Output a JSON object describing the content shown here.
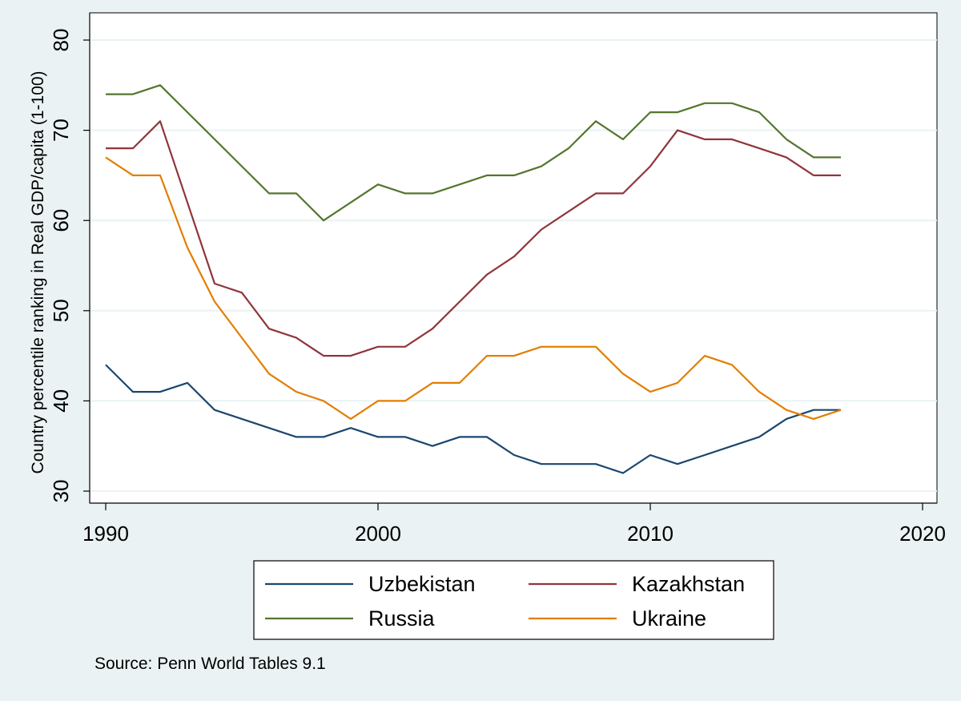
{
  "chart_data": {
    "type": "line",
    "title": "",
    "xlabel": "",
    "ylabel": "Country percentile ranking in Real GDP/capita (1-100)",
    "note": "Source: Penn World Tables 9.1",
    "xlim": [
      1990,
      2020
    ],
    "ylim": [
      30,
      80
    ],
    "xticks": [
      1990,
      2000,
      2010,
      2020
    ],
    "yticks": [
      30,
      40,
      50,
      60,
      70,
      80
    ],
    "grid": true,
    "legend": "bottom",
    "x": [
      1990,
      1991,
      1992,
      1993,
      1994,
      1995,
      1996,
      1997,
      1998,
      1999,
      2000,
      2001,
      2002,
      2003,
      2004,
      2005,
      2006,
      2007,
      2008,
      2009,
      2010,
      2011,
      2012,
      2013,
      2014,
      2015,
      2016,
      2017
    ],
    "series": [
      {
        "name": "Uzbekistan",
        "color": "#1a476f",
        "values": [
          44,
          41,
          41,
          42,
          39,
          38,
          37,
          36,
          36,
          37,
          36,
          36,
          35,
          36,
          36,
          34,
          33,
          33,
          33,
          32,
          34,
          33,
          34,
          35,
          36,
          38,
          39,
          39
        ]
      },
      {
        "name": "Kazakhstan",
        "color": "#90353b",
        "values": [
          68,
          68,
          71,
          62,
          53,
          52,
          48,
          47,
          45,
          45,
          46,
          46,
          48,
          51,
          54,
          56,
          59,
          61,
          63,
          63,
          66,
          70,
          69,
          69,
          68,
          67,
          65,
          65
        ]
      },
      {
        "name": "Russia",
        "color": "#55752f",
        "values": [
          74,
          74,
          75,
          72,
          69,
          66,
          63,
          63,
          60,
          62,
          64,
          63,
          63,
          64,
          65,
          65,
          66,
          68,
          71,
          69,
          72,
          72,
          73,
          73,
          72,
          69,
          67,
          67
        ]
      },
      {
        "name": "Ukraine",
        "color": "#e37e00",
        "values": [
          67,
          65,
          65,
          57,
          51,
          47,
          43,
          41,
          40,
          38,
          40,
          40,
          42,
          42,
          45,
          45,
          46,
          46,
          46,
          43,
          41,
          42,
          45,
          44,
          41,
          39,
          38,
          39
        ]
      }
    ]
  }
}
